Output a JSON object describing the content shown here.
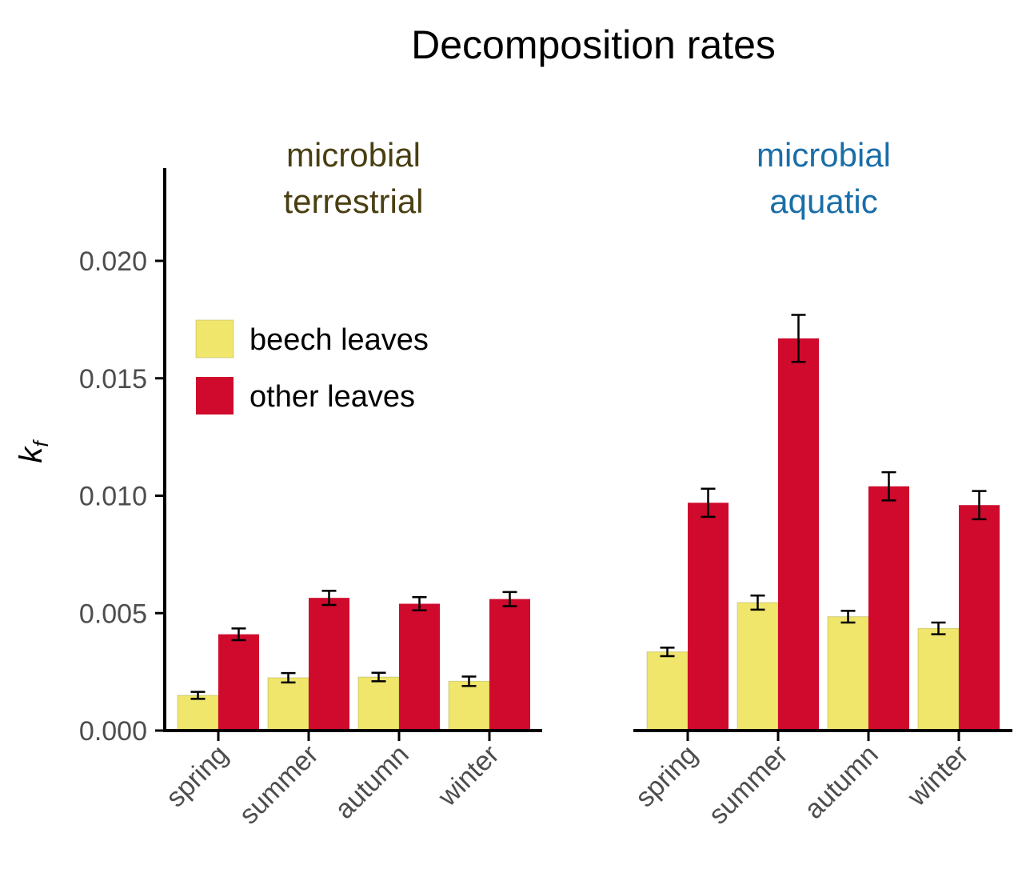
{
  "chart_data": {
    "type": "bar",
    "title": "Decomposition rates",
    "ylabel": "k",
    "ylabel_subscript": "f",
    "ylim": [
      0,
      0.024
    ],
    "yticks": [
      "0.000",
      "0.005",
      "0.010",
      "0.015",
      "0.020"
    ],
    "ytick_values": [
      0,
      0.005,
      0.01,
      0.015,
      0.02
    ],
    "categories": [
      "spring",
      "summer",
      "autumn",
      "winter"
    ],
    "legend": {
      "placement": "top-left",
      "entries": [
        {
          "label": "beech leaves",
          "color": "#f0e66b"
        },
        {
          "label": "other leaves",
          "color": "#cf0a2c"
        }
      ]
    },
    "panels": [
      {
        "title_line1": "microbial",
        "title_line2": "terrestrial",
        "title_color": "#4a3f12",
        "series": [
          {
            "name": "beech leaves",
            "color": "#f0e66b",
            "values": [
              0.0015,
              0.00225,
              0.00228,
              0.0021
            ],
            "errors": [
              0.00015,
              0.0002,
              0.00018,
              0.0002
            ]
          },
          {
            "name": "other leaves",
            "color": "#cf0a2c",
            "values": [
              0.0041,
              0.00565,
              0.0054,
              0.0056
            ],
            "errors": [
              0.00025,
              0.0003,
              0.00028,
              0.0003
            ]
          }
        ]
      },
      {
        "title_line1": "microbial",
        "title_line2": "aquatic",
        "title_color": "#1a6ea8",
        "series": [
          {
            "name": "beech leaves",
            "color": "#f0e66b",
            "values": [
              0.00335,
              0.00545,
              0.00485,
              0.00435
            ],
            "errors": [
              0.00018,
              0.0003,
              0.00025,
              0.00025
            ]
          },
          {
            "name": "other leaves",
            "color": "#cf0a2c",
            "values": [
              0.0097,
              0.0167,
              0.0104,
              0.0096
            ],
            "errors": [
              0.0006,
              0.001,
              0.0006,
              0.0006
            ]
          }
        ]
      }
    ]
  }
}
